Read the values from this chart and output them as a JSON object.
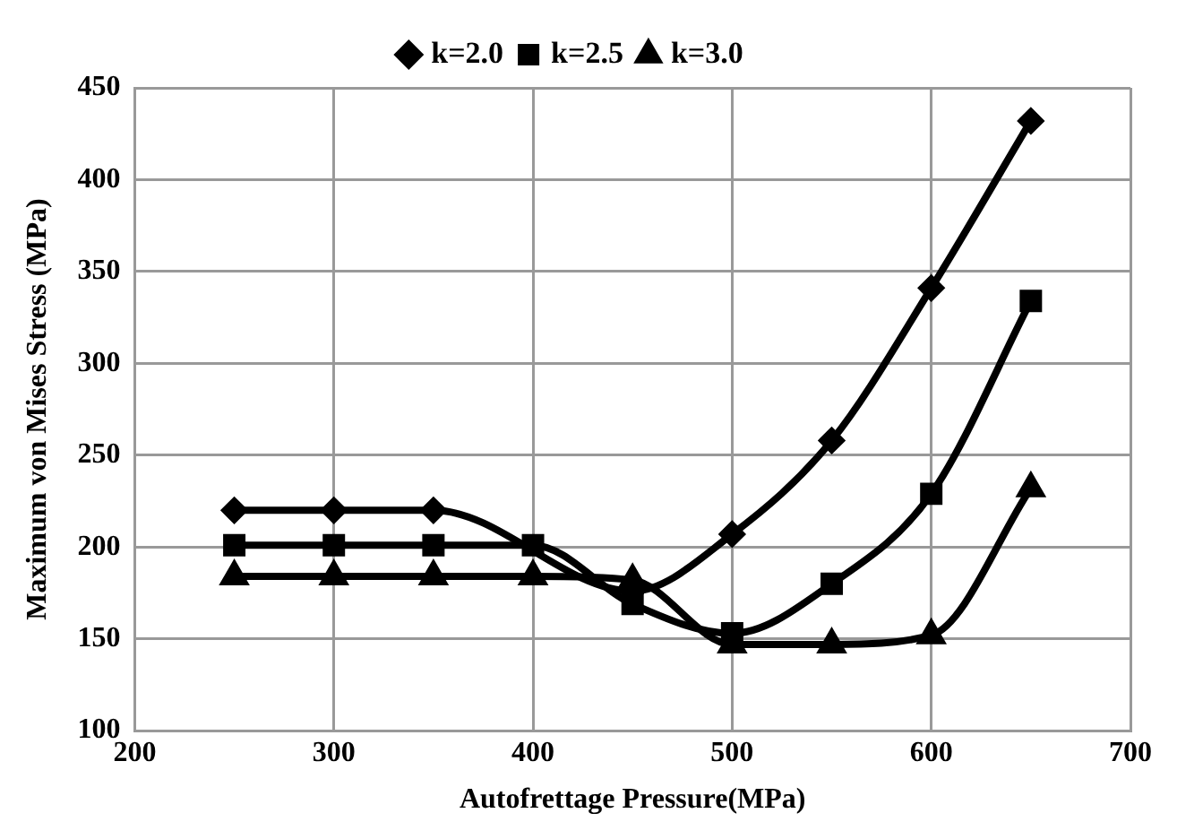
{
  "chart_data": {
    "type": "line",
    "xlabel": "Autofrettage Pressure(MPa)",
    "ylabel": "Maximum von Mises Stress (MPa)",
    "x": [
      250,
      300,
      350,
      400,
      450,
      500,
      550,
      600,
      650
    ],
    "series": [
      {
        "name": "k=2.0",
        "color": "#000000",
        "marker": "diamond",
        "values": [
          220,
          220,
          220,
          null,
          176,
          207,
          258,
          341,
          432
        ]
      },
      {
        "name": "k=2.5",
        "color": "#000000",
        "marker": "square",
        "values": [
          201,
          201,
          201,
          201,
          169,
          153,
          180,
          229,
          334
        ]
      },
      {
        "name": "k=3.0",
        "color": "#000000",
        "marker": "triangle",
        "values": [
          184,
          184,
          184,
          184,
          182,
          147,
          147,
          152,
          232
        ]
      }
    ],
    "xlim": [
      200,
      700
    ],
    "xticks": [
      200,
      300,
      400,
      500,
      600,
      700
    ],
    "ylim": [
      100,
      450
    ],
    "yticks": [
      100,
      150,
      200,
      250,
      300,
      350,
      400,
      450
    ],
    "grid": true,
    "legend": "top",
    "line_style": "solid"
  }
}
